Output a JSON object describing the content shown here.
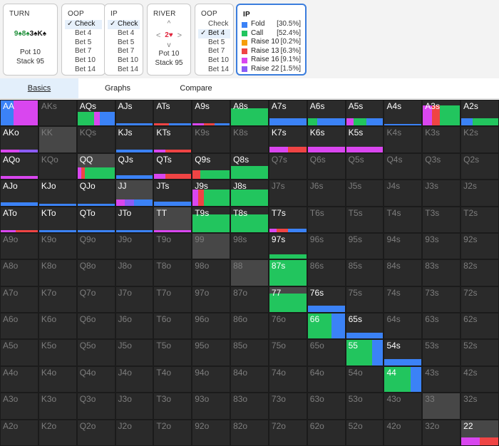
{
  "turn_panel": {
    "title": "TURN",
    "board": [
      {
        "text": "9",
        "color": "#1f8f3a"
      },
      {
        "text": "♠",
        "color": "#1f8f3a"
      },
      {
        "text": "8",
        "color": "#1f8f3a"
      },
      {
        "text": "♠",
        "color": "#1f8f3a"
      },
      {
        "text": "3",
        "color": "#111111"
      },
      {
        "text": "♠",
        "color": "#111111"
      },
      {
        "text": "K",
        "color": "#111111"
      },
      {
        "text": "♠",
        "color": "#111111"
      }
    ],
    "pot": "Pot 10",
    "stack": "Stack 95"
  },
  "oop_panel_1": {
    "title": "OOP",
    "options": [
      "Check",
      "Bet 4",
      "Bet 5",
      "Bet 7",
      "Bet 10",
      "Bet 14"
    ],
    "selected": 0
  },
  "ip_panel": {
    "title": "IP",
    "options": [
      "Check",
      "Bet 4",
      "Bet 5",
      "Bet 7",
      "Bet 10",
      "Bet 14"
    ],
    "selected": 0
  },
  "river_panel": {
    "title": "RIVER",
    "up": "^",
    "down": "v",
    "left": "<",
    "right": ">",
    "card": "2♥",
    "pot": "Pot 10",
    "stack": "Stack 95"
  },
  "oop_panel_2": {
    "title": "OOP",
    "options": [
      "Check",
      "Bet 4",
      "Bet 5",
      "Bet 7",
      "Bet 10",
      "Bet 14"
    ],
    "selected": 1
  },
  "ip_result": {
    "title": "IP",
    "actions": [
      {
        "name": "Fold",
        "pct": "[30.5%]",
        "color": "#3b82f6"
      },
      {
        "name": "Call",
        "pct": "[52.4%]",
        "color": "#22c55e"
      },
      {
        "name": "Raise 10",
        "pct": "[0.2%]",
        "color": "#f59e0b"
      },
      {
        "name": "Raise 13",
        "pct": "[6.3%]",
        "color": "#ef4444"
      },
      {
        "name": "Raise 16",
        "pct": "[9.1%]",
        "color": "#d946ef"
      },
      {
        "name": "Raise 22",
        "pct": "[1.5%]",
        "color": "#8b5cf6"
      }
    ]
  },
  "tabs": [
    {
      "label": "Basics",
      "active": true
    },
    {
      "label": "Graphs",
      "active": false
    },
    {
      "label": "Compare",
      "active": false
    }
  ],
  "colors": {
    "fold": "#3b82f6",
    "call": "#22c55e",
    "raise10": "#f59e0b",
    "raise13": "#ef4444",
    "raise16": "#d946ef",
    "raise22": "#8b5cf6",
    "cell_active": "#2b2b2b",
    "cell_inactive": "#2a2a2a",
    "cell_pair_empty": "#474747",
    "text_active": "#ffffff",
    "text_inactive": "#7d7d7d"
  },
  "grid": {
    "ranks": [
      "A",
      "K",
      "Q",
      "J",
      "T",
      "9",
      "8",
      "7",
      "6",
      "5",
      "4",
      "3",
      "2"
    ],
    "cells": {
      "AA": {
        "fill": 1,
        "segs": [
          [
            "fold",
            0.35
          ],
          [
            "raise16",
            0.65
          ]
        ],
        "bg": "pair"
      },
      "AQs": {
        "fill": 0.55,
        "segs": [
          [
            "call",
            0.45
          ],
          [
            "raise16",
            0.15
          ],
          [
            "fold",
            0.4
          ]
        ]
      },
      "AJs": {
        "fill": 0.1,
        "segs": [
          [
            "fold",
            1
          ]
        ]
      },
      "ATs": {
        "fill": 0.1,
        "segs": [
          [
            "raise13",
            0.4
          ],
          [
            "fold",
            0.6
          ]
        ]
      },
      "A9s": {
        "fill": 0.1,
        "segs": [
          [
            "raise16",
            0.3
          ],
          [
            "raise13",
            0.3
          ],
          [
            "fold",
            0.4
          ]
        ]
      },
      "A8s": {
        "fill": 0.7,
        "segs": [
          [
            "call",
            1
          ]
        ]
      },
      "A7s": {
        "fill": 0.3,
        "segs": [
          [
            "fold",
            1
          ]
        ]
      },
      "A6s": {
        "fill": 0.3,
        "segs": [
          [
            "call",
            0.25
          ],
          [
            "fold",
            0.75
          ]
        ]
      },
      "A5s": {
        "fill": 0.3,
        "segs": [
          [
            "raise16",
            0.2
          ],
          [
            "call",
            0.35
          ],
          [
            "fold",
            0.45
          ]
        ]
      },
      "A4s": {
        "fill": 0.08,
        "segs": [
          [
            "fold",
            1
          ]
        ]
      },
      "A3s": {
        "fill": 0.8,
        "segs": [
          [
            "raise16",
            0.25
          ],
          [
            "raise13",
            0.2
          ],
          [
            "call",
            0.55
          ]
        ]
      },
      "A2s": {
        "fill": 0.3,
        "segs": [
          [
            "fold",
            0.3
          ],
          [
            "call",
            0.7
          ]
        ]
      },
      "AKo": {
        "fill": 0.12,
        "segs": [
          [
            "raise16",
            0.5
          ],
          [
            "raise22",
            0.5
          ]
        ]
      },
      "KK": {
        "fill": 0,
        "segs": [],
        "bg": "pair",
        "dim": true
      },
      "KJs": {
        "fill": 0.1,
        "segs": [
          [
            "fold",
            1
          ]
        ]
      },
      "KTs": {
        "fill": 0.12,
        "segs": [
          [
            "raise16",
            0.3
          ],
          [
            "raise13",
            0.7
          ]
        ]
      },
      "K7s": {
        "fill": 0.22,
        "segs": [
          [
            "raise16",
            0.5
          ],
          [
            "raise13",
            0.5
          ]
        ]
      },
      "K6s": {
        "fill": 0.22,
        "segs": [
          [
            "raise16",
            1
          ]
        ]
      },
      "K5s": {
        "fill": 0.22,
        "segs": [
          [
            "raise16",
            1
          ]
        ]
      },
      "AQo": {
        "fill": 0.12,
        "segs": [
          [
            "raise16",
            1
          ]
        ]
      },
      "QQ": {
        "fill": 0.45,
        "segs": [
          [
            "raise16",
            0.1
          ],
          [
            "raise13",
            0.1
          ],
          [
            "call",
            0.8
          ]
        ],
        "bg": "pair"
      },
      "QJs": {
        "fill": 0.15,
        "segs": [
          [
            "fold",
            1
          ]
        ]
      },
      "QTs": {
        "fill": 0.2,
        "segs": [
          [
            "raise16",
            0.3
          ],
          [
            "raise13",
            0.7
          ]
        ]
      },
      "Q9s": {
        "fill": 0.35,
        "segs": [
          [
            "raise13",
            0.2
          ],
          [
            "call",
            0.8
          ]
        ]
      },
      "Q8s": {
        "fill": 0.5,
        "segs": [
          [
            "call",
            1
          ]
        ]
      },
      "AJo": {
        "fill": 0.12,
        "segs": [
          [
            "fold",
            1
          ]
        ]
      },
      "KJo": {
        "fill": 0.08,
        "segs": [
          [
            "fold",
            1
          ]
        ]
      },
      "QJo": {
        "fill": 0.08,
        "segs": [
          [
            "fold",
            1
          ]
        ]
      },
      "JJ": {
        "fill": 0.25,
        "segs": [
          [
            "raise16",
            0.25
          ],
          [
            "raise22",
            0.25
          ],
          [
            "fold",
            0.5
          ]
        ],
        "bg": "pair"
      },
      "JTs": {
        "fill": 0.15,
        "segs": [
          [
            "fold",
            1
          ]
        ]
      },
      "J9s": {
        "fill": 0.65,
        "segs": [
          [
            "raise16",
            0.15
          ],
          [
            "raise13",
            0.15
          ],
          [
            "call",
            0.7
          ]
        ]
      },
      "J8s": {
        "fill": 0.65,
        "segs": [
          [
            "call",
            1
          ]
        ]
      },
      "ATo": {
        "fill": 0.08,
        "segs": [
          [
            "raise16",
            0.4
          ],
          [
            "raise13",
            0.6
          ]
        ]
      },
      "KTo": {
        "fill": 0.08,
        "segs": [
          [
            "fold",
            1
          ]
        ]
      },
      "QTo": {
        "fill": 0.08,
        "segs": [
          [
            "fold",
            1
          ]
        ]
      },
      "JTo": {
        "fill": 0.08,
        "segs": [
          [
            "fold",
            1
          ]
        ]
      },
      "TT": {
        "fill": 0.08,
        "segs": [
          [
            "raise16",
            1
          ]
        ],
        "bg": "pair"
      },
      "T9s": {
        "fill": 0.7,
        "segs": [
          [
            "call",
            1
          ]
        ]
      },
      "T8s": {
        "fill": 0.7,
        "segs": [
          [
            "call",
            1
          ]
        ]
      },
      "T7s": {
        "fill": 0.15,
        "segs": [
          [
            "raise16",
            0.2
          ],
          [
            "raise13",
            0.3
          ],
          [
            "fold",
            0.5
          ]
        ]
      },
      "97s": {
        "fill": 0.18,
        "segs": [
          [
            "call",
            1
          ]
        ]
      },
      "87s": {
        "fill": 1,
        "segs": [
          [
            "call",
            1
          ]
        ]
      },
      "77": {
        "fill": 0.75,
        "segs": [
          [
            "call",
            1
          ]
        ],
        "bg": "pair"
      },
      "76s": {
        "fill": 0.25,
        "segs": [
          [
            "fold",
            1
          ]
        ]
      },
      "66": {
        "fill": 1,
        "segs": [
          [
            "call",
            0.65
          ],
          [
            "fold",
            0.35
          ]
        ],
        "bg": "pair"
      },
      "65s": {
        "fill": 0.25,
        "segs": [
          [
            "fold",
            1
          ]
        ]
      },
      "55": {
        "fill": 1,
        "segs": [
          [
            "call",
            0.7
          ],
          [
            "fold",
            0.3
          ]
        ],
        "bg": "pair"
      },
      "54s": {
        "fill": 0.25,
        "segs": [
          [
            "fold",
            1
          ]
        ]
      },
      "44": {
        "fill": 1,
        "segs": [
          [
            "call",
            0.7
          ],
          [
            "fold",
            0.3
          ]
        ],
        "bg": "pair"
      },
      "33": {
        "fill": 0,
        "segs": [],
        "bg": "pair",
        "dim": true
      },
      "22": {
        "fill": 0.3,
        "segs": [
          [
            "raise16",
            0.5
          ],
          [
            "raise13",
            0.5
          ]
        ],
        "bg": "pair"
      },
      "99": {
        "fill": 0,
        "segs": [],
        "bg": "pair",
        "dim": true
      },
      "88": {
        "fill": 0,
        "segs": [],
        "bg": "pair",
        "dim": true
      }
    }
  }
}
